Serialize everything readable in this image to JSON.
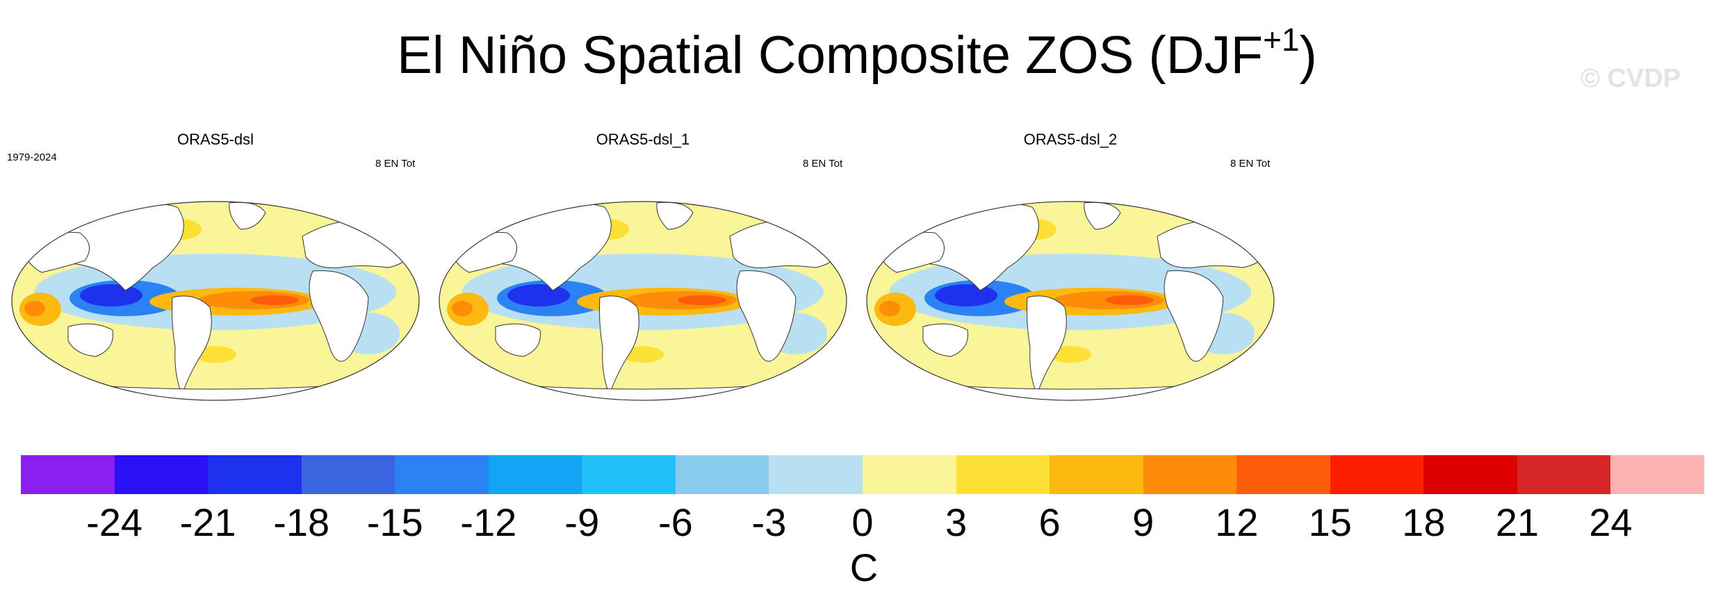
{
  "title": {
    "main": "El Niño Spatial Composite ZOS (DJF",
    "sup": "+1",
    "close": ")"
  },
  "watermark": "© CVDP",
  "panels": [
    {
      "title": "ORAS5-dsl",
      "left": "1979-2024",
      "right": "8 EN Tot"
    },
    {
      "title": "ORAS5-dsl_1",
      "left": "",
      "right": "8 EN Tot"
    },
    {
      "title": "ORAS5-dsl_2",
      "left": "",
      "right": "8 EN Tot"
    }
  ],
  "colorbar": {
    "colors": [
      "#8a1ff0",
      "#2a10f5",
      "#1e32ee",
      "#3a64e0",
      "#2a82f5",
      "#12a4f5",
      "#22c0f8",
      "#88ccee",
      "#b8e0f2",
      "#fbf59a",
      "#fde035",
      "#fdb910",
      "#fd8c08",
      "#fd5c08",
      "#fe1e00",
      "#de0000",
      "#d42628",
      "#fdb2b2"
    ],
    "ticks": [
      "-24",
      "-21",
      "-18",
      "-15",
      "-12",
      "-9",
      "-6",
      "-3",
      "0",
      "3",
      "6",
      "9",
      "12",
      "15",
      "18",
      "21",
      "24"
    ],
    "unit": "C"
  }
}
